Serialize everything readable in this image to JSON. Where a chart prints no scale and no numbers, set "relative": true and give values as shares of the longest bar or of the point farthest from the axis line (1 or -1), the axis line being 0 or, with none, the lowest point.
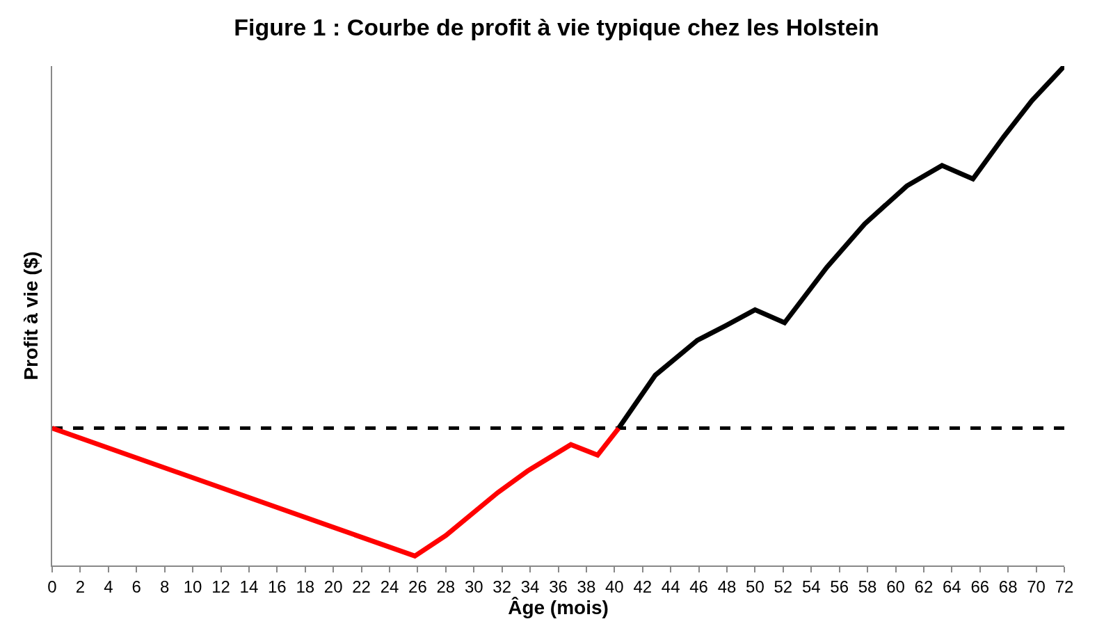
{
  "chart_data": {
    "type": "line",
    "title": "Figure 1 : Courbe de profit à vie typique chez les Holstein",
    "xlabel": "Âge (mois)",
    "ylabel": "Profit à vie ($)",
    "relative": true,
    "xlim": [
      0,
      72
    ],
    "xticks": [
      0,
      2,
      4,
      6,
      8,
      10,
      12,
      14,
      16,
      18,
      20,
      22,
      24,
      26,
      28,
      30,
      32,
      34,
      36,
      38,
      40,
      42,
      44,
      46,
      48,
      50,
      52,
      54,
      56,
      58,
      60,
      62,
      64,
      66,
      68,
      70,
      72
    ],
    "series": [
      {
        "color": "#ff0000",
        "x": [
          0,
          25.8,
          28,
          31.7,
          33.8,
          36.9,
          38.8,
          40.3
        ],
        "values": [
          0.275,
          0.019,
          0.06,
          0.146,
          0.189,
          0.242,
          0.221,
          0.275
        ]
      },
      {
        "color": "#000000",
        "x": [
          40.3,
          42.9,
          45.9,
          47.9,
          50,
          52.1,
          55.1,
          57.8,
          60.8,
          63.3,
          65.5,
          67.7,
          69.7,
          72
        ],
        "values": [
          0.275,
          0.381,
          0.451,
          0.48,
          0.512,
          0.486,
          0.597,
          0.684,
          0.76,
          0.801,
          0.774,
          0.859,
          0.931,
          1
        ]
      }
    ],
    "ref_lines": [
      {
        "axis": "y",
        "value": 0.275,
        "color": "#000000",
        "line_style": "dashed"
      }
    ],
    "grid": false,
    "marker": "none",
    "line_style": "solid"
  }
}
